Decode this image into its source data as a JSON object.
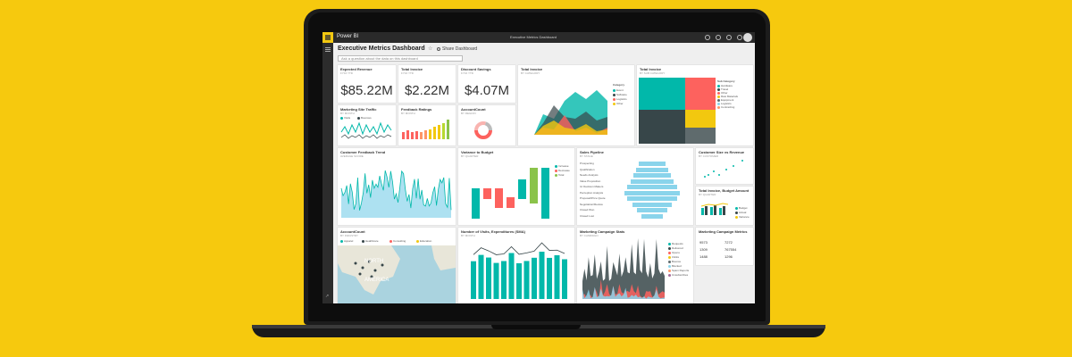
{
  "app": {
    "brand": "Power BI",
    "doc_title": "Executive Metrics Dashboard"
  },
  "dashboard": {
    "title": "Executive Metrics Dashboard",
    "share_label": "Share Dashboard",
    "qna_placeholder": "Ask a question about the data on this dashboard"
  },
  "tiles": {
    "expected_revenue": {
      "title": "Expected Revenue",
      "sub": "FY16 YTD",
      "value": "$85.22M"
    },
    "total_invoice_kpi": {
      "title": "Total Invoice",
      "sub": "FY16 YTD",
      "value": "$2.22M"
    },
    "discount_savings": {
      "title": "Discount Savings",
      "sub": "FY16 YTD",
      "value": "$4.07M"
    },
    "total_invoice_area": {
      "title": "Total Invoice",
      "sub": "BY CATEGORY",
      "legend_title": "Category",
      "legend": [
        "Event",
        "Software",
        "Logistics",
        "Other"
      ]
    },
    "total_invoice_tree": {
      "title": "Total Invoice",
      "sub": "BY SUB CATEGORY",
      "legend_title": "Sub Category",
      "legend": [
        "Hardware",
        "Travel",
        "Other",
        "Raw Materials",
        "Equipment",
        "Logistics",
        "Contracting"
      ]
    },
    "marketing_traffic": {
      "title": "Marketing Site Traffic",
      "sub": "BY MONTH",
      "legend": [
        "Visits",
        "Bounces"
      ]
    },
    "feedback_ratings": {
      "title": "Feedback Ratings",
      "sub": "BY MONTH"
    },
    "account_count_donut": {
      "title": "AccountCount",
      "sub": "BY REGION"
    },
    "customer_feedback": {
      "title": "Customer Feedback Trend",
      "sub": "AVERAGE SCORE"
    },
    "variance_budget": {
      "title": "Variance to Budget",
      "sub": "BY QUARTER",
      "legend": [
        "Increase",
        "Decrease",
        "Total"
      ]
    },
    "sales_pipeline": {
      "title": "Sales Pipeline",
      "sub": "BY STAGE",
      "stages": [
        "Prospecting",
        "Qualification",
        "Needs Analysis",
        "Value Proposition",
        "Id. Decision Makers",
        "Perception Analysis",
        "Proposal/Price Quote",
        "Negotiation/Review",
        "Closed Won",
        "Closed Lost"
      ]
    },
    "customer_size": {
      "title": "Customer Size vs Revenue",
      "sub": "BY CUSTOMER"
    },
    "total_invoice_budget": {
      "title": "Total Invoice, Budget Amount",
      "sub": "BY QUARTER",
      "legend": [
        "Budget",
        "Actual",
        "Variance"
      ]
    },
    "account_map": {
      "title": "AccountCount",
      "sub": "BY INDUSTRY",
      "legend": [
        "Apparel",
        "Healthcare",
        "Consulting",
        "Education"
      ],
      "map_label_1": "NORTH",
      "map_label_2": "AMERICA"
    },
    "visits_expenditures": {
      "title": "Number of Visits, Expenditures (SMA)",
      "sub": "BY MONTH"
    },
    "campaign_stats": {
      "title": "Marketing Campaign Stats",
      "sub": "BY CAMPAIGN",
      "legend": [
        "Requests",
        "Delivered",
        "Opens",
        "Clicks",
        "Bounce",
        "Blocked",
        "Spam Reports",
        "Unsubscribes"
      ]
    },
    "campaign_metrics": {
      "title": "Marketing Campaign Metrics",
      "values": [
        "9573",
        "7272",
        "1309",
        "767554",
        "1488",
        "1296"
      ]
    }
  },
  "colors": {
    "background": "#f6c90e",
    "accent": "#f2c811",
    "teal": "#01b8aa",
    "dark": "#374649",
    "red": "#fd625e",
    "yellow": "#f2c80f",
    "green": "#8ad4eb"
  }
}
